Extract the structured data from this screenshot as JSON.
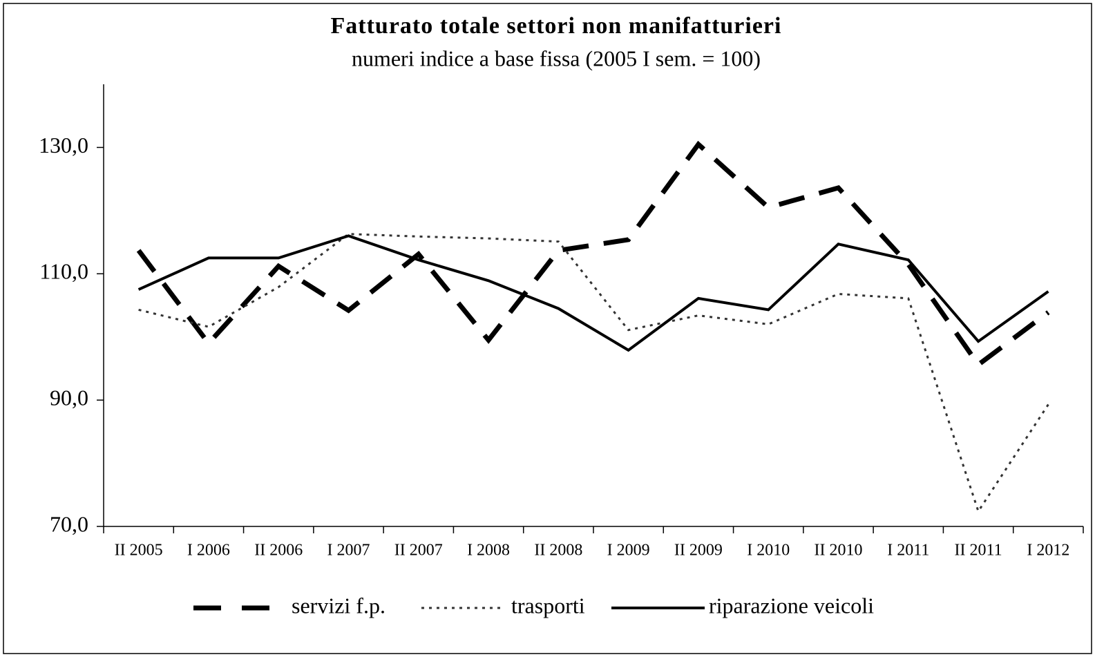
{
  "chart_data": {
    "type": "line",
    "title": "Fatturato totale settori non manifatturieri",
    "subtitle": "numeri indice a base fissa (2005 I sem. = 100)",
    "categories": [
      "II 2005",
      "I 2006",
      "II 2006",
      "I 2007",
      "II 2007",
      "I 2008",
      "II 2008",
      "I 2009",
      "II 2009",
      "I 2010",
      "II 2010",
      "I 2011",
      "II 2011",
      "I 2012"
    ],
    "series": [
      {
        "name": "servizi f.p.",
        "color": "#000000",
        "dash": "dashed",
        "values": [
          113.7,
          99.0,
          111.2,
          104.2,
          113.1,
          99.5,
          113.7,
          115.4,
          130.5,
          120.5,
          123.6,
          111.5,
          95.6,
          103.9
        ]
      },
      {
        "name": "trasporti",
        "color": "#333333",
        "dash": "dotted",
        "values": [
          104.3,
          101.6,
          107.9,
          116.3,
          115.9,
          115.6,
          115.1,
          101.1,
          103.4,
          102.0,
          106.8,
          106.1,
          72.4,
          89.3
        ]
      },
      {
        "name": "riparazione veicoli",
        "color": "#000000",
        "dash": "solid",
        "values": [
          107.5,
          112.5,
          112.5,
          116.0,
          112.2,
          108.9,
          104.5,
          97.9,
          106.1,
          104.3,
          114.7,
          112.2,
          99.3,
          107.2
        ]
      }
    ],
    "ylim": [
      70,
      140
    ],
    "yticks": [
      {
        "value": 70,
        "label": "70,0"
      },
      {
        "value": 90,
        "label": "90,0"
      },
      {
        "value": 110,
        "label": "110,0"
      },
      {
        "value": 130,
        "label": "130,0"
      }
    ],
    "grid": false,
    "legend": "bottom"
  }
}
